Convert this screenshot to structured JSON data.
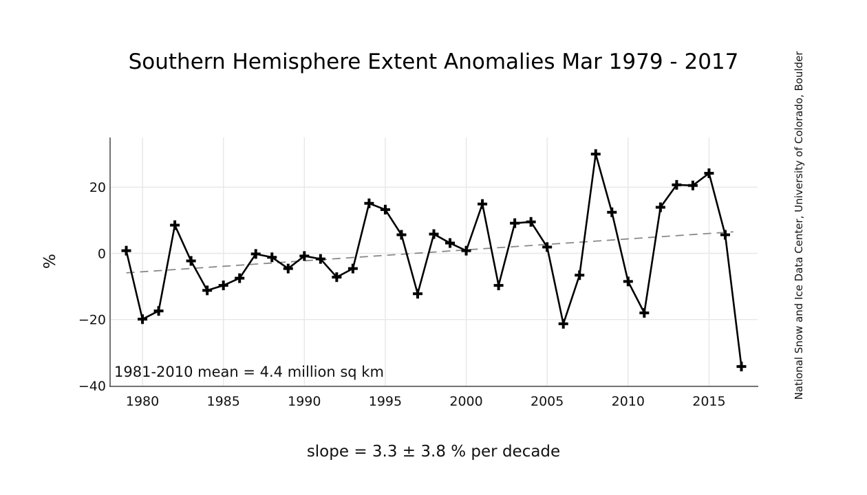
{
  "chart_data": {
    "type": "line",
    "title": "Southern Hemisphere Extent Anomalies Mar 1979 - 2017",
    "xlabel": "slope = 3.3 ± 3.8 % per decade",
    "ylabel": "%",
    "annotation": "1981-2010 mean = 4.4 million sq km",
    "credit": "National Snow and Ice Data Center, University of Colorado, Boulder",
    "xlim": [
      1978,
      2018
    ],
    "ylim": [
      -40,
      35
    ],
    "xticks": [
      1980,
      1985,
      1990,
      1995,
      2000,
      2005,
      2010,
      2015
    ],
    "yticks": [
      -40,
      -20,
      0,
      20
    ],
    "ytick_labels": [
      "−40",
      "−20",
      "0",
      "20"
    ],
    "grid": true,
    "series": [
      {
        "marker": "plus",
        "color": "#000000",
        "x": [
          1979,
          1980,
          1981,
          1982,
          1983,
          1984,
          1985,
          1986,
          1987,
          1988,
          1989,
          1990,
          1991,
          1992,
          1993,
          1994,
          1995,
          1996,
          1997,
          1998,
          1999,
          2000,
          2001,
          2002,
          2003,
          2004,
          2005,
          2006,
          2007,
          2008,
          2009,
          2010,
          2011,
          2012,
          2013,
          2014,
          2015,
          2016,
          2017
        ],
        "y": [
          0.8,
          -19.9,
          -17.4,
          8.5,
          -2.3,
          -11.2,
          -9.7,
          -7.5,
          -0.2,
          -1.2,
          -4.6,
          -0.8,
          -1.7,
          -7.2,
          -4.6,
          15.1,
          13.2,
          5.6,
          -12.2,
          5.8,
          3.1,
          0.8,
          14.9,
          -9.7,
          9.1,
          9.5,
          1.9,
          -21.3,
          -6.6,
          30.0,
          12.4,
          -8.5,
          -18.0,
          13.9,
          20.7,
          20.5,
          24.2,
          5.6,
          -34.2
        ]
      }
    ],
    "trend": {
      "style": "dashed",
      "color": "#888888",
      "x": [
        1979,
        2016.5
      ],
      "y": [
        -5.9,
        6.5
      ]
    }
  }
}
